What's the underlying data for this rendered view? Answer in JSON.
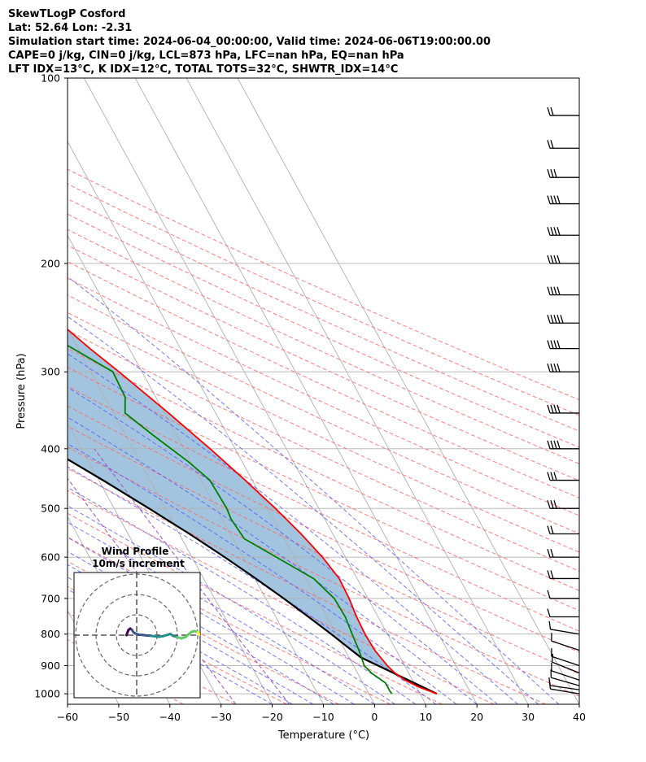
{
  "header": {
    "line1": "SkewTLogP Cosford",
    "line2": "Lat: 52.64   Lon: -2.31",
    "line3": "Simulation start time: 2024-06-04_00:00:00, Valid time: 2024-06-06T19:00:00.00",
    "line4": "CAPE=0 j/kg, CIN=0 j/kg, LCL=873 hPa, LFC=nan hPa, EQ=nan hPa",
    "line5": "LFT IDX=13°C, K IDX=12°C, TOTAL TOTS=32°C, SHWTR_IDX=14°C"
  },
  "chart_data": {
    "type": "skew-t",
    "xlabel": "Temperature (°C)",
    "ylabel": "Pressure (hPa)",
    "xlim": [
      -60,
      40
    ],
    "ylim": [
      1040,
      100
    ],
    "x_ticks": [
      -60,
      -50,
      -40,
      -30,
      -20,
      -10,
      0,
      10,
      20,
      30,
      40
    ],
    "y_ticks": [
      100,
      200,
      300,
      400,
      500,
      600,
      700,
      800,
      900,
      1000
    ],
    "y_scale": "log",
    "grid": true,
    "colors": {
      "temperature": "#ff0000",
      "dewpoint": "#008000",
      "parcel": "#000000",
      "cin_shade": "#a3c4de",
      "dry_adiabats": "#ff6666",
      "moist_adiabats": "#5555ff",
      "mixing_ratio": "#a050c8",
      "isotherms": "#b0b0b0"
    },
    "temperature": [
      [
        1000,
        13.3
      ],
      [
        975,
        10.5
      ],
      [
        950,
        8.5
      ],
      [
        925,
        7.3
      ],
      [
        900,
        6.6
      ],
      [
        875,
        6.2
      ],
      [
        850,
        5.8
      ],
      [
        825,
        5.7
      ],
      [
        800,
        5.6
      ],
      [
        750,
        5.8
      ],
      [
        700,
        6.3
      ],
      [
        650,
        6.5
      ],
      [
        600,
        5.5
      ],
      [
        550,
        3.8
      ],
      [
        500,
        1.5
      ],
      [
        450,
        -1.4
      ],
      [
        400,
        -4.9
      ],
      [
        350,
        -9.2
      ],
      [
        300,
        -14.5
      ],
      [
        275,
        -17.7
      ],
      [
        250,
        -20.8
      ],
      [
        235,
        -21.5
      ],
      [
        225,
        -21.2
      ],
      [
        210,
        -20.5
      ],
      [
        200,
        -20.2
      ],
      [
        185,
        -19.3
      ],
      [
        170,
        -18.2
      ],
      [
        155,
        -17.3
      ],
      [
        140,
        -16.9
      ],
      [
        125,
        -16.4
      ],
      [
        115,
        -15.7
      ],
      [
        108,
        -14.9
      ],
      [
        100,
        -14.7
      ]
    ],
    "dewpoint": [
      [
        1000,
        4.5
      ],
      [
        990,
        4.4
      ],
      [
        960,
        4.4
      ],
      [
        925,
        2.7
      ],
      [
        900,
        2.1
      ],
      [
        875,
        2.4
      ],
      [
        850,
        2.7
      ],
      [
        800,
        3.1
      ],
      [
        750,
        3.6
      ],
      [
        700,
        3.4
      ],
      [
        650,
        1.5
      ],
      [
        600,
        -3.5
      ],
      [
        560,
        -7.8
      ],
      [
        520,
        -8.3
      ],
      [
        500,
        -8.0
      ],
      [
        450,
        -8.3
      ],
      [
        420,
        -10.5
      ],
      [
        380,
        -14.6
      ],
      [
        350,
        -17.7
      ],
      [
        330,
        -16.0
      ],
      [
        300,
        -15.7
      ],
      [
        275,
        -21.0
      ],
      [
        255,
        -26.0
      ],
      [
        235,
        -29.5
      ],
      [
        220,
        -31.7
      ],
      [
        205,
        -33.9
      ],
      [
        195,
        -37.0
      ],
      [
        180,
        -42.0
      ],
      [
        170,
        -47.0
      ],
      [
        150,
        -48.0
      ],
      [
        130,
        -49.0
      ],
      [
        115,
        -49.5
      ],
      [
        100,
        -50.0
      ]
    ],
    "parcel": [
      [
        1000,
        13.3
      ],
      [
        873,
        2.3
      ],
      [
        850,
        1.3
      ],
      [
        800,
        -1.0
      ],
      [
        750,
        -3.6
      ],
      [
        700,
        -6.5
      ],
      [
        650,
        -9.8
      ],
      [
        600,
        -13.6
      ],
      [
        550,
        -18.0
      ],
      [
        500,
        -23.2
      ],
      [
        450,
        -29.2
      ],
      [
        400,
        -36.2
      ],
      [
        350,
        -44.3
      ],
      [
        300,
        -53.7
      ],
      [
        250,
        -64.5
      ],
      [
        200,
        -77.3
      ],
      [
        150,
        -92.5
      ],
      [
        100,
        -111.0
      ]
    ],
    "wind_barbs": [
      {
        "p": 1000,
        "u": 6,
        "v": -1
      },
      {
        "p": 985,
        "u": 7,
        "v": -1
      },
      {
        "p": 970,
        "u": 7,
        "v": -2
      },
      {
        "p": 950,
        "u": 6,
        "v": -2
      },
      {
        "p": 925,
        "u": 5,
        "v": -2
      },
      {
        "p": 900,
        "u": 6,
        "v": -2
      },
      {
        "p": 850,
        "u": 6,
        "v": -2
      },
      {
        "p": 800,
        "u": 6,
        "v": -1
      },
      {
        "p": 750,
        "u": 5,
        "v": 0
      },
      {
        "p": 700,
        "u": 7,
        "v": 0
      },
      {
        "p": 650,
        "u": 8,
        "v": 0
      },
      {
        "p": 600,
        "u": 10,
        "v": 0
      },
      {
        "p": 550,
        "u": 12,
        "v": 0
      },
      {
        "p": 500,
        "u": 15,
        "v": 0
      },
      {
        "p": 450,
        "u": 17,
        "v": 0
      },
      {
        "p": 400,
        "u": 18,
        "v": 0
      },
      {
        "p": 350,
        "u": 18,
        "v": 0
      },
      {
        "p": 300,
        "u": 20,
        "v": 0
      },
      {
        "p": 275,
        "u": 22,
        "v": 0
      },
      {
        "p": 250,
        "u": 24,
        "v": 0
      },
      {
        "p": 225,
        "u": 22,
        "v": 0
      },
      {
        "p": 200,
        "u": 20,
        "v": 0
      },
      {
        "p": 180,
        "u": 19,
        "v": 0
      },
      {
        "p": 160,
        "u": 18,
        "v": 0
      },
      {
        "p": 145,
        "u": 17,
        "v": 0
      },
      {
        "p": 130,
        "u": 12,
        "v": 0
      },
      {
        "p": 115,
        "u": 10,
        "v": 0
      }
    ],
    "hodograph": {
      "title": "Wind Profile",
      "subtitle": "10m/s increment",
      "rings": [
        10,
        20,
        30
      ],
      "points": [
        [
          -5,
          0
        ],
        [
          -4.6,
          1.2
        ],
        [
          -4,
          2.6
        ],
        [
          -3.2,
          3.2
        ],
        [
          -2.4,
          2.7
        ],
        [
          -1.6,
          1.4
        ],
        [
          -0.6,
          0.8
        ],
        [
          1,
          0.2
        ],
        [
          3,
          0.1
        ],
        [
          5,
          -0.2
        ],
        [
          7,
          -0.3
        ],
        [
          9,
          -0.6
        ],
        [
          11,
          -0.8
        ],
        [
          13,
          -0.5
        ],
        [
          15,
          0.1
        ],
        [
          16.5,
          0.6
        ],
        [
          18,
          -0.4
        ],
        [
          20,
          -1.0
        ],
        [
          22,
          -1.6
        ],
        [
          24,
          -0.9
        ],
        [
          25.5,
          0.4
        ],
        [
          27,
          1.6
        ],
        [
          28.5,
          2.0
        ],
        [
          30,
          1.4
        ],
        [
          31.5,
          0.0
        ],
        [
          32.5,
          -1.0
        ],
        [
          34,
          -1.2
        ],
        [
          35,
          -0.5
        ]
      ]
    }
  }
}
